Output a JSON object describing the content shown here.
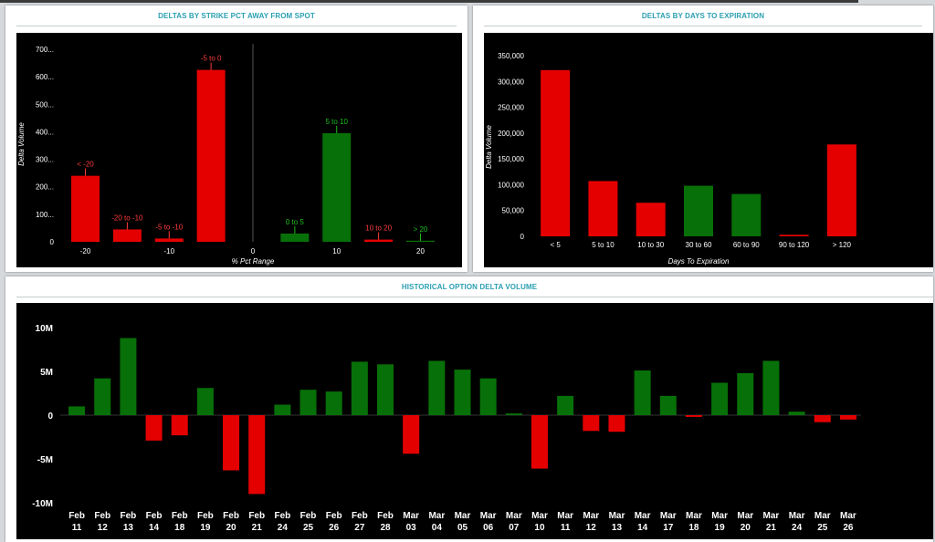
{
  "colors": {
    "positive": "#087008",
    "negative": "#e50000",
    "positive_label": "#1bbf1b",
    "negative_label": "#ff3b3b",
    "panel_title": "#2a9fb1",
    "chart_bg": "#000000",
    "axis_text": "#ffffff"
  },
  "panels": {
    "strike": {
      "title": "DELTAS BY STRIKE PCT AWAY FROM SPOT"
    },
    "dte": {
      "title": "DELTAS BY DAYS TO EXPIRATION"
    },
    "history": {
      "title": "HISTORICAL OPTION DELTA VOLUME"
    }
  },
  "chart_data": [
    {
      "type": "bar",
      "title": "DELTAS BY STRIKE PCT AWAY FROM SPOT",
      "xlabel": "% Pct Range",
      "ylabel": "Delta Volume",
      "xlim": [
        -23,
        23
      ],
      "ylim": [
        0,
        700
      ],
      "y_ticks": [
        0,
        100,
        200,
        300,
        400,
        500,
        600,
        700
      ],
      "y_tick_labels": [
        "0",
        "100...",
        "200...",
        "300...",
        "400...",
        "500...",
        "600...",
        "700..."
      ],
      "x_ticks": [
        -20,
        -10,
        0,
        10,
        20
      ],
      "x_tick_labels": [
        "-20",
        "-10",
        "0",
        "10",
        "20"
      ],
      "zero_line": true,
      "bars": [
        {
          "x": -20,
          "value": 240,
          "label": "< -20",
          "sign": "negative"
        },
        {
          "x": -15,
          "value": 45,
          "label": "-20 to -10",
          "sign": "negative"
        },
        {
          "x": -10,
          "value": 12,
          "label": "-5 to -10",
          "sign": "negative"
        },
        {
          "x": -5,
          "value": 625,
          "label": "-5 to 0",
          "sign": "negative"
        },
        {
          "x": 5,
          "value": 30,
          "label": "0 to 5",
          "sign": "positive"
        },
        {
          "x": 10,
          "value": 395,
          "label": "5 to 10",
          "sign": "positive"
        },
        {
          "x": 15,
          "value": 8,
          "label": "10 to 20",
          "sign": "negative"
        },
        {
          "x": 20,
          "value": 4,
          "label": "> 20",
          "sign": "positive"
        }
      ]
    },
    {
      "type": "bar",
      "title": "DELTAS BY DAYS TO EXPIRATION",
      "xlabel": "Days To Expiration",
      "ylabel": "Delta Volume",
      "ylim": [
        0,
        350000
      ],
      "y_ticks": [
        0,
        50000,
        100000,
        150000,
        200000,
        250000,
        300000,
        350000
      ],
      "y_tick_labels": [
        "0",
        "50,000",
        "100,000",
        "150,000",
        "200,000",
        "250,000",
        "300,000",
        "350,000"
      ],
      "categories": [
        "< 5",
        "5 to 10",
        "10 to 30",
        "30 to 60",
        "60 to 90",
        "90 to 120",
        "> 120"
      ],
      "values": [
        322000,
        107000,
        65000,
        98000,
        82000,
        3000,
        178000
      ],
      "signs": [
        "negative",
        "negative",
        "negative",
        "positive",
        "positive",
        "negative",
        "negative"
      ]
    },
    {
      "type": "bar",
      "title": "HISTORICAL OPTION DELTA VOLUME",
      "xlabel": "",
      "ylabel": "",
      "ylim": [
        -10,
        10
      ],
      "y_unit": "M",
      "y_ticks": [
        10,
        5,
        0,
        -5,
        -10
      ],
      "y_tick_labels": [
        "10M",
        "5M",
        "0",
        "-5M",
        "-10M"
      ],
      "categories": [
        [
          "Feb",
          "11"
        ],
        [
          "Feb",
          "12"
        ],
        [
          "Feb",
          "13"
        ],
        [
          "Feb",
          "14"
        ],
        [
          "Feb",
          "18"
        ],
        [
          "Feb",
          "19"
        ],
        [
          "Feb",
          "20"
        ],
        [
          "Feb",
          "21"
        ],
        [
          "Feb",
          "24"
        ],
        [
          "Feb",
          "25"
        ],
        [
          "Feb",
          "26"
        ],
        [
          "Feb",
          "27"
        ],
        [
          "Feb",
          "28"
        ],
        [
          "Mar",
          "03"
        ],
        [
          "Mar",
          "04"
        ],
        [
          "Mar",
          "05"
        ],
        [
          "Mar",
          "06"
        ],
        [
          "Mar",
          "07"
        ],
        [
          "Mar",
          "10"
        ],
        [
          "Mar",
          "11"
        ],
        [
          "Mar",
          "12"
        ],
        [
          "Mar",
          "13"
        ],
        [
          "Mar",
          "14"
        ],
        [
          "Mar",
          "17"
        ],
        [
          "Mar",
          "18"
        ],
        [
          "Mar",
          "19"
        ],
        [
          "Mar",
          "20"
        ],
        [
          "Mar",
          "21"
        ],
        [
          "Mar",
          "24"
        ],
        [
          "Mar",
          "25"
        ],
        [
          "Mar",
          "26"
        ]
      ],
      "values": [
        1.0,
        4.2,
        8.8,
        -2.9,
        -2.3,
        3.1,
        -6.3,
        -9.0,
        1.2,
        2.9,
        2.7,
        6.1,
        5.8,
        -4.4,
        6.2,
        5.2,
        4.2,
        0.2,
        -6.1,
        2.2,
        -1.8,
        -1.9,
        5.1,
        2.2,
        -0.2,
        3.7,
        4.8,
        6.2,
        0.4,
        -0.8,
        -0.5
      ]
    }
  ]
}
